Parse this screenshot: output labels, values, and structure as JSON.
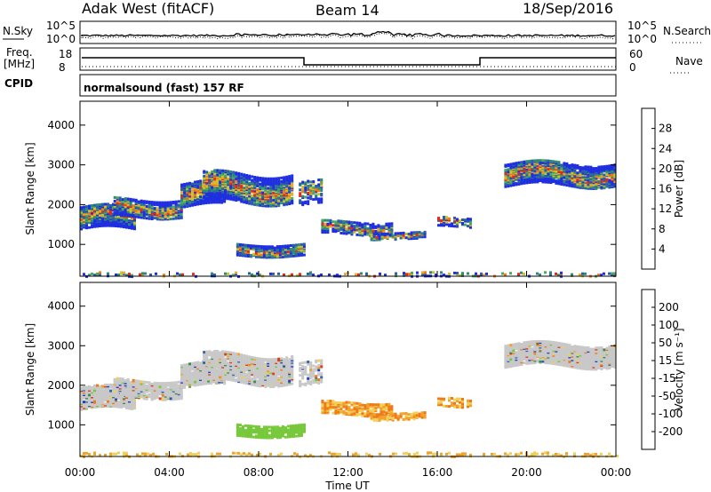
{
  "header": {
    "station": "Adak West (fitACF)",
    "beam": "Beam 14",
    "date": "18/Sep/2016"
  },
  "noise_panel": {
    "left_label": "N.Sky",
    "right_label": "N.Search",
    "left_ticks": [
      "10^5",
      "10^0"
    ],
    "right_ticks": [
      "10^5",
      "10^0"
    ]
  },
  "freq_panel": {
    "left_label_1": "Freq.",
    "left_label_2": "[MHz]",
    "right_label": "Nave",
    "left_ticks": [
      "18",
      "8"
    ],
    "right_ticks": [
      "60",
      "0"
    ]
  },
  "cpid": {
    "label": "CPID",
    "text": "normalsound (fast) 157 RF"
  },
  "chart_data": [
    {
      "type": "heatmap",
      "ylabel": "Slant Range [km]",
      "xlabel": "Time UT",
      "x_ticks": [
        "00:00",
        "04:00",
        "08:00",
        "12:00",
        "16:00",
        "20:00",
        "00:00"
      ],
      "y_ticks": [
        1000,
        2000,
        3000,
        4000
      ],
      "ylim": [
        200,
        4600
      ],
      "xlim_hours": [
        0,
        24
      ],
      "colorbar": {
        "label": "Power [dB]",
        "ticks": [
          "4",
          "8",
          "12",
          "16",
          "20",
          "24",
          "28"
        ],
        "colors": [
          "#1f2ee0",
          "#2c5fa8",
          "#2f8a73",
          "#4cab5a",
          "#c8c52c",
          "#f0a62c",
          "#f07a18",
          "#e22a1a"
        ]
      }
    },
    {
      "type": "heatmap",
      "ylabel": "Slant Range [km]",
      "xlabel": "Time UT",
      "x_ticks": [
        "00:00",
        "04:00",
        "08:00",
        "12:00",
        "16:00",
        "20:00",
        "00:00"
      ],
      "y_ticks": [
        1000,
        2000,
        3000,
        4000
      ],
      "ylim": [
        200,
        4600
      ],
      "xlim_hours": [
        0,
        24
      ],
      "colorbar": {
        "label": "Velocity [m s⁻¹]",
        "ticks": [
          "200",
          "100",
          "50",
          "15",
          "-15",
          "-50",
          "-100",
          "-200"
        ],
        "colors": [
          "#1f3fc8",
          "#3a63b0",
          "#3f8a4e",
          "#77c83a",
          "#c8c8c8",
          "#f0d05a",
          "#f0a22c",
          "#f07a18",
          "#e03a18"
        ]
      }
    }
  ]
}
